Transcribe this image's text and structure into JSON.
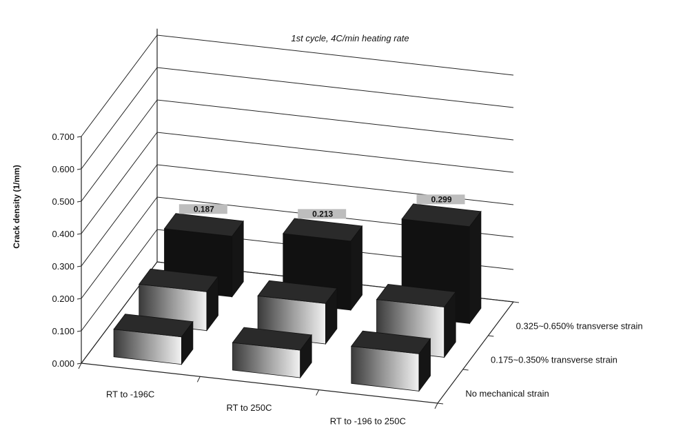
{
  "chart_data": {
    "type": "bar",
    "title": "1st cycle, 4C/min heating rate",
    "ylabel": "Crack density (1/mm)",
    "xlabel": "",
    "ylim": [
      0,
      0.7
    ],
    "yticks": [
      "0.000",
      "0.100",
      "0.200",
      "0.300",
      "0.400",
      "0.500",
      "0.600",
      "0.700"
    ],
    "categories": [
      "RT to -196C",
      "RT to 250C",
      "RT to -196 to 250C"
    ],
    "series": [
      {
        "name": "No mechanical strain",
        "values": [
          0.085,
          0.085,
          0.115
        ]
      },
      {
        "name": "0.175~0.350% transverse strain",
        "values": [
          0.12,
          0.125,
          0.155
        ]
      },
      {
        "name": "0.325~0.650% transverse strain",
        "values": [
          0.187,
          0.213,
          0.299
        ]
      }
    ],
    "data_labels": [
      "0.187",
      "0.213",
      "0.299"
    ],
    "grid": true,
    "projection": "3d"
  }
}
